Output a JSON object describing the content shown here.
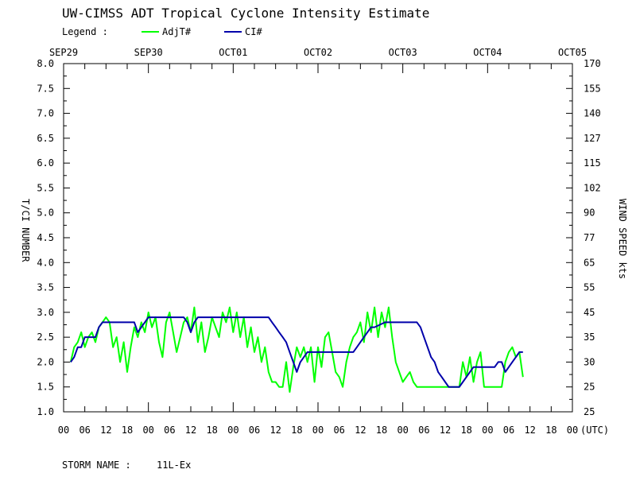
{
  "chart_data": {
    "type": "line",
    "title": "UW-CIMSS ADT Tropical Cyclone Intensity Estimate",
    "legend_label": "Legend :",
    "legend_placement": "top-left",
    "date_labels": [
      "SEP29",
      "SEP30",
      "OCT01",
      "OCT02",
      "OCT03",
      "OCT04",
      "OCT05"
    ],
    "hour_tick_labels": [
      "00",
      "06",
      "12",
      "18",
      "00",
      "06",
      "12",
      "18",
      "00",
      "06",
      "12",
      "18",
      "00",
      "06",
      "12",
      "18",
      "00",
      "06",
      "12",
      "18",
      "00",
      "06",
      "12",
      "18",
      "00"
    ],
    "utc_label": "(UTC)",
    "x_range_hours": [
      0,
      144
    ],
    "ylabel_left": "T/CI NUMBER",
    "ylabel_right": "WIND SPEED kts",
    "ylim": [
      1.0,
      8.0
    ],
    "y_ticks_left": [
      "1.0",
      "1.5",
      "2.0",
      "2.5",
      "3.0",
      "3.5",
      "4.0",
      "4.5",
      "5.0",
      "5.5",
      "6.0",
      "6.5",
      "7.0",
      "7.5",
      "8.0"
    ],
    "y_ticks_right": [
      "25",
      "25",
      "30",
      "35",
      "45",
      "55",
      "65",
      "77",
      "90",
      "102",
      "115",
      "127",
      "140",
      "155",
      "170"
    ],
    "grid": false,
    "series": [
      {
        "name": "AdjT#",
        "color": "#00ff00",
        "points": [
          [
            2,
            2.0
          ],
          [
            3,
            2.3
          ],
          [
            4,
            2.4
          ],
          [
            5,
            2.6
          ],
          [
            6,
            2.3
          ],
          [
            7,
            2.5
          ],
          [
            8,
            2.6
          ],
          [
            9,
            2.4
          ],
          [
            10,
            2.7
          ],
          [
            11,
            2.8
          ],
          [
            12,
            2.9
          ],
          [
            13,
            2.8
          ],
          [
            14,
            2.3
          ],
          [
            15,
            2.5
          ],
          [
            16,
            2.0
          ],
          [
            17,
            2.4
          ],
          [
            18,
            1.8
          ],
          [
            19,
            2.3
          ],
          [
            20,
            2.7
          ],
          [
            21,
            2.5
          ],
          [
            22,
            2.8
          ],
          [
            23,
            2.6
          ],
          [
            24,
            3.0
          ],
          [
            25,
            2.7
          ],
          [
            26,
            2.9
          ],
          [
            27,
            2.4
          ],
          [
            28,
            2.1
          ],
          [
            29,
            2.8
          ],
          [
            30,
            3.0
          ],
          [
            31,
            2.6
          ],
          [
            32,
            2.2
          ],
          [
            33,
            2.5
          ],
          [
            34,
            2.8
          ],
          [
            35,
            2.9
          ],
          [
            36,
            2.6
          ],
          [
            37,
            3.1
          ],
          [
            38,
            2.4
          ],
          [
            39,
            2.8
          ],
          [
            40,
            2.2
          ],
          [
            41,
            2.5
          ],
          [
            42,
            2.9
          ],
          [
            43,
            2.7
          ],
          [
            44,
            2.5
          ],
          [
            45,
            3.0
          ],
          [
            46,
            2.8
          ],
          [
            47,
            3.1
          ],
          [
            48,
            2.6
          ],
          [
            49,
            3.0
          ],
          [
            50,
            2.5
          ],
          [
            51,
            2.9
          ],
          [
            52,
            2.3
          ],
          [
            53,
            2.7
          ],
          [
            54,
            2.2
          ],
          [
            55,
            2.5
          ],
          [
            56,
            2.0
          ],
          [
            57,
            2.3
          ],
          [
            58,
            1.8
          ],
          [
            59,
            1.6
          ],
          [
            60,
            1.6
          ],
          [
            61,
            1.5
          ],
          [
            62,
            1.5
          ],
          [
            63,
            2.0
          ],
          [
            64,
            1.4
          ],
          [
            65,
            1.9
          ],
          [
            66,
            2.3
          ],
          [
            67,
            2.1
          ],
          [
            68,
            2.3
          ],
          [
            69,
            2.0
          ],
          [
            70,
            2.3
          ],
          [
            71,
            1.6
          ],
          [
            72,
            2.3
          ],
          [
            73,
            1.9
          ],
          [
            74,
            2.5
          ],
          [
            75,
            2.6
          ],
          [
            76,
            2.2
          ],
          [
            77,
            1.8
          ],
          [
            78,
            1.7
          ],
          [
            79,
            1.5
          ],
          [
            80,
            2.0
          ],
          [
            81,
            2.3
          ],
          [
            82,
            2.5
          ],
          [
            83,
            2.6
          ],
          [
            84,
            2.8
          ],
          [
            85,
            2.4
          ],
          [
            86,
            3.0
          ],
          [
            87,
            2.6
          ],
          [
            88,
            3.1
          ],
          [
            89,
            2.5
          ],
          [
            90,
            3.0
          ],
          [
            91,
            2.7
          ],
          [
            92,
            3.1
          ],
          [
            93,
            2.5
          ],
          [
            94,
            2.0
          ],
          [
            95,
            1.8
          ],
          [
            96,
            1.6
          ],
          [
            97,
            1.7
          ],
          [
            98,
            1.8
          ],
          [
            99,
            1.6
          ],
          [
            100,
            1.5
          ],
          [
            104,
            1.5
          ],
          [
            108,
            1.5
          ],
          [
            112,
            1.5
          ],
          [
            113,
            2.0
          ],
          [
            114,
            1.7
          ],
          [
            115,
            2.1
          ],
          [
            116,
            1.6
          ],
          [
            117,
            2.0
          ],
          [
            118,
            2.2
          ],
          [
            119,
            1.5
          ],
          [
            124,
            1.5
          ],
          [
            125,
            2.0
          ],
          [
            126,
            2.2
          ],
          [
            127,
            2.3
          ],
          [
            128,
            2.1
          ],
          [
            129,
            2.2
          ],
          [
            130,
            1.7
          ]
        ]
      },
      {
        "name": "CI#",
        "color": "#0000aa",
        "points": [
          [
            2,
            2.0
          ],
          [
            3,
            2.1
          ],
          [
            4,
            2.3
          ],
          [
            5,
            2.3
          ],
          [
            6,
            2.5
          ],
          [
            7,
            2.5
          ],
          [
            8,
            2.5
          ],
          [
            9,
            2.5
          ],
          [
            10,
            2.7
          ],
          [
            11,
            2.8
          ],
          [
            12,
            2.8
          ],
          [
            20,
            2.8
          ],
          [
            21,
            2.6
          ],
          [
            22,
            2.7
          ],
          [
            23,
            2.8
          ],
          [
            24,
            2.9
          ],
          [
            34,
            2.9
          ],
          [
            35,
            2.8
          ],
          [
            36,
            2.6
          ],
          [
            37,
            2.8
          ],
          [
            38,
            2.9
          ],
          [
            58,
            2.9
          ],
          [
            59,
            2.8
          ],
          [
            60,
            2.7
          ],
          [
            61,
            2.6
          ],
          [
            62,
            2.5
          ],
          [
            63,
            2.4
          ],
          [
            64,
            2.2
          ],
          [
            65,
            2.0
          ],
          [
            66,
            1.8
          ],
          [
            67,
            2.0
          ],
          [
            68,
            2.1
          ],
          [
            69,
            2.2
          ],
          [
            82,
            2.2
          ],
          [
            83,
            2.3
          ],
          [
            84,
            2.4
          ],
          [
            85,
            2.5
          ],
          [
            86,
            2.6
          ],
          [
            87,
            2.7
          ],
          [
            88,
            2.7
          ],
          [
            91,
            2.8
          ],
          [
            100,
            2.8
          ],
          [
            101,
            2.7
          ],
          [
            102,
            2.5
          ],
          [
            103,
            2.3
          ],
          [
            104,
            2.1
          ],
          [
            105,
            2.0
          ],
          [
            106,
            1.8
          ],
          [
            107,
            1.7
          ],
          [
            108,
            1.6
          ],
          [
            109,
            1.5
          ],
          [
            112,
            1.5
          ],
          [
            113,
            1.6
          ],
          [
            114,
            1.7
          ],
          [
            115,
            1.8
          ],
          [
            116,
            1.9
          ],
          [
            122,
            1.9
          ],
          [
            123,
            2.0
          ],
          [
            124,
            2.0
          ],
          [
            125,
            1.8
          ],
          [
            126,
            1.9
          ],
          [
            127,
            2.0
          ],
          [
            128,
            2.1
          ],
          [
            129,
            2.2
          ],
          [
            130,
            2.2
          ]
        ]
      }
    ],
    "footer": {
      "label": "STORM NAME :",
      "value": "11L-Ex"
    }
  }
}
